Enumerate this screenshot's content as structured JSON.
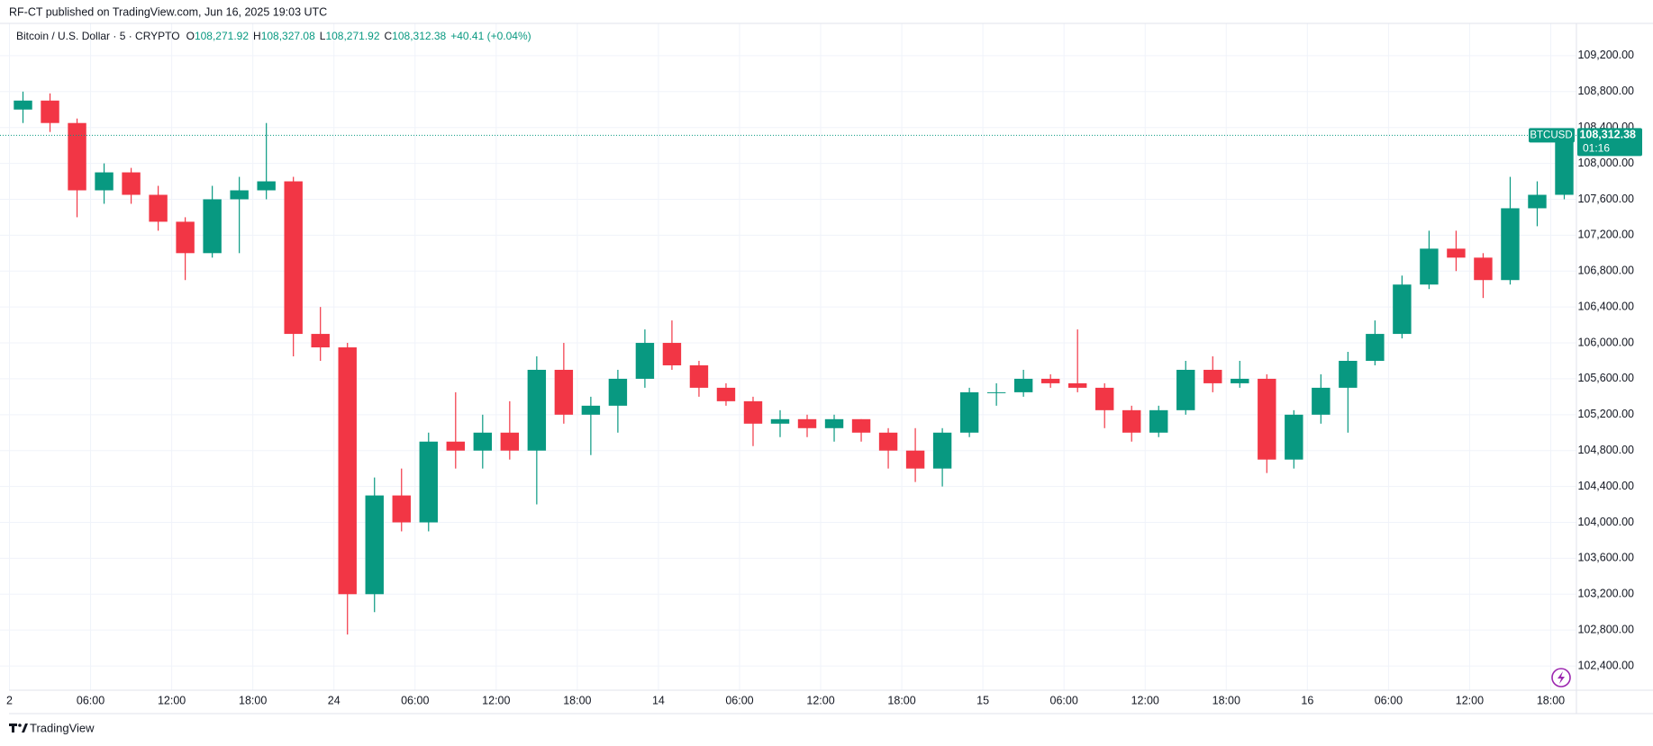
{
  "chart_data": {
    "type": "candlestick",
    "header": "RF-CT published on TradingView.com, Jun 16, 2025 19:03 UTC",
    "symbol": "Bitcoin / U.S. Dollar · 5 · CRYPTO",
    "ohlc": [
      {
        "key": "O",
        "value": "108,271.92"
      },
      {
        "key": "H",
        "value": "108,327.08"
      },
      {
        "key": "L",
        "value": "108,271.92"
      },
      {
        "key": "C",
        "value": "108,312.38"
      }
    ],
    "change": "+40.41 (+0.04%)",
    "ticker": "BTCUSD",
    "last_price": {
      "value": 108312.38,
      "label": "108,312.38"
    },
    "countdown": "01:16",
    "brand": "TradingView",
    "up_color": "#089981",
    "down_color": "#f23645",
    "grid": true,
    "x": [
      0,
      2,
      4,
      6,
      8,
      10,
      12,
      14,
      16,
      18,
      20,
      22,
      24,
      26,
      28,
      30,
      32,
      34,
      36,
      38,
      40,
      42,
      44,
      46,
      48,
      50,
      52,
      54,
      56,
      58,
      60,
      62,
      64,
      66,
      68,
      70,
      72,
      74,
      76,
      78,
      80,
      82,
      84,
      86,
      88,
      90,
      92,
      94,
      96,
      98,
      100,
      102,
      104,
      106,
      108,
      110,
      112,
      114
    ],
    "open": [
      108600,
      108700,
      108450,
      107700,
      107900,
      107650,
      107350,
      107000,
      107600,
      107700,
      107800,
      106100,
      105950,
      103200,
      104300,
      104000,
      104900,
      104800,
      105000,
      104800,
      105700,
      105200,
      105300,
      105600,
      106000,
      105750,
      105500,
      105350,
      105100,
      105150,
      105050,
      105150,
      105000,
      104800,
      104600,
      105000,
      105450,
      105450,
      105600,
      105550,
      105500,
      105250,
      105000,
      105250,
      105700,
      105550,
      105600,
      104700,
      105200,
      105500,
      105800,
      106100,
      106650,
      107050,
      106950,
      106700,
      107500,
      107650
    ],
    "high": [
      108800,
      108780,
      108500,
      108000,
      107950,
      107750,
      107400,
      107750,
      107850,
      108450,
      107850,
      106400,
      106000,
      104500,
      104600,
      105000,
      105450,
      105200,
      105350,
      105850,
      106000,
      105400,
      105700,
      106150,
      106250,
      105800,
      105550,
      105400,
      105250,
      105200,
      105200,
      105150,
      105050,
      105050,
      105050,
      105500,
      105550,
      105700,
      105650,
      106150,
      105550,
      105300,
      105300,
      105800,
      105850,
      105800,
      105650,
      105250,
      105650,
      105900,
      106250,
      106750,
      107250,
      107250,
      107000,
      107850,
      107800,
      108327.08
    ],
    "low": [
      108450,
      108350,
      107400,
      107550,
      107550,
      107250,
      106700,
      106950,
      107000,
      107600,
      105850,
      105800,
      102750,
      103000,
      103900,
      103900,
      104600,
      104600,
      104700,
      104200,
      105100,
      104750,
      105000,
      105500,
      105700,
      105400,
      105300,
      104850,
      104950,
      104950,
      104900,
      104900,
      104600,
      104450,
      104400,
      104950,
      105300,
      105400,
      105500,
      105450,
      105050,
      104900,
      104950,
      105200,
      105450,
      105500,
      104550,
      104600,
      105100,
      105000,
      105750,
      106050,
      106600,
      106800,
      106500,
      106650,
      107300,
      107600
    ],
    "close": [
      108700,
      108450,
      107700,
      107900,
      107650,
      107350,
      107000,
      107600,
      107700,
      107800,
      106100,
      105950,
      103200,
      104300,
      104000,
      104900,
      104800,
      105000,
      104800,
      105700,
      105200,
      105300,
      105600,
      106000,
      105750,
      105500,
      105350,
      105100,
      105150,
      105050,
      105150,
      105000,
      104800,
      104600,
      105000,
      105450,
      105450,
      105600,
      105550,
      105500,
      105250,
      105000,
      105250,
      105700,
      105550,
      105600,
      104700,
      105200,
      105500,
      105800,
      106100,
      106650,
      107050,
      106950,
      106700,
      107500,
      107650,
      108312.38
    ],
    "xlim": [
      -0.7,
      115.9
    ],
    "xticks": [
      {
        "value": 0,
        "label": "2"
      },
      {
        "value": 6,
        "label": "06:00"
      },
      {
        "value": 12,
        "label": "12:00"
      },
      {
        "value": 18,
        "label": "18:00"
      },
      24,
      {
        "value": 30,
        "label": "06:00"
      },
      {
        "value": 36,
        "label": "12:00"
      },
      {
        "value": 42,
        "label": "18:00"
      },
      {
        "value": 48,
        "label": "14"
      },
      {
        "value": 54,
        "label": "06:00"
      },
      {
        "value": 60,
        "label": "12:00"
      },
      {
        "value": 66,
        "label": "18:00"
      },
      {
        "value": 72,
        "label": "15"
      },
      {
        "value": 78,
        "label": "06:00"
      },
      {
        "value": 84,
        "label": "12:00"
      },
      {
        "value": 90,
        "label": "18:00"
      },
      {
        "value": 96,
        "label": "16"
      },
      {
        "value": 102,
        "label": "06:00"
      },
      {
        "value": 108,
        "label": "12:00"
      },
      {
        "value": 114,
        "label": "18:00"
      }
    ],
    "ylim": [
      102130,
      109560
    ],
    "yticks": [
      {
        "value": 102400,
        "label": "102,400.00"
      },
      {
        "value": 102800,
        "label": "102,800.00"
      },
      {
        "value": 103200,
        "label": "103,200.00"
      },
      {
        "value": 103600,
        "label": "103,600.00"
      },
      {
        "value": 104000,
        "label": "104,000.00"
      },
      {
        "value": 104400,
        "label": "104,400.00"
      },
      {
        "value": 104800,
        "label": "104,800.00"
      },
      {
        "value": 105200,
        "label": "105,200.00"
      },
      {
        "value": 105600,
        "label": "105,600.00"
      },
      {
        "value": 106000,
        "label": "106,000.00"
      },
      {
        "value": 106400,
        "label": "106,400.00"
      },
      {
        "value": 106800,
        "label": "106,800.00"
      },
      {
        "value": 107200,
        "label": "107,200.00"
      },
      {
        "value": 107600,
        "label": "107,600.00"
      },
      {
        "value": 108000,
        "label": "108,000.00"
      },
      {
        "value": 108400,
        "label": "108,400.00"
      },
      {
        "value": 108800,
        "label": "108,800.00"
      },
      {
        "value": 109200,
        "label": "109,200.00"
      }
    ]
  }
}
